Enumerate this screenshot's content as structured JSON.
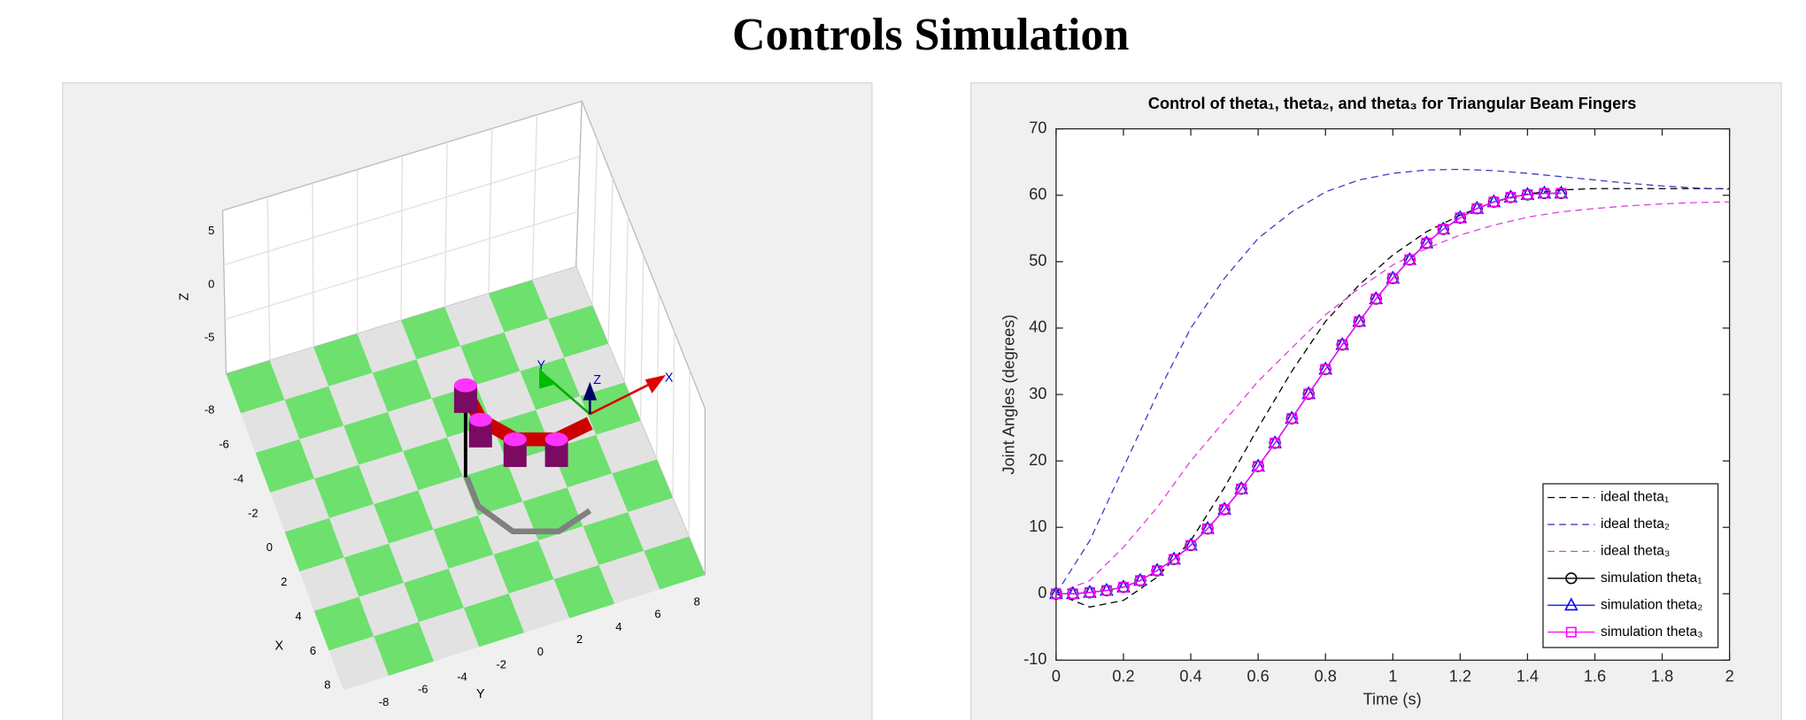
{
  "title": "Controls Simulation",
  "scene": {
    "zlabel": "Z",
    "xlabel": "X",
    "ylabel": "Y",
    "zticks": [
      5,
      0,
      -5
    ],
    "xticks": [
      -8,
      -6,
      -4,
      -2,
      0,
      2,
      4,
      6,
      8
    ],
    "yticks": [
      -8,
      -6,
      -4,
      -2,
      0,
      2,
      4,
      6,
      8
    ],
    "frame_labels": [
      "X",
      "Y",
      "Z"
    ]
  },
  "chart_data": {
    "type": "line",
    "title": "Control of theta₁, theta₂, and theta₃ for Triangular Beam Fingers",
    "x_label": "Time (s)",
    "y_label": "Joint Angles (degrees)",
    "xlim": [
      0,
      2
    ],
    "ylim": [
      -10,
      70
    ],
    "xticks": [
      0,
      0.2,
      0.4,
      0.6,
      0.8,
      1,
      1.2,
      1.4,
      1.6,
      1.8,
      2
    ],
    "yticks": [
      -10,
      0,
      10,
      20,
      30,
      40,
      50,
      60,
      70
    ],
    "grid": false,
    "legend_position": "southeast",
    "series": [
      {
        "name": "ideal theta₁",
        "color": "#000000",
        "line_style": "dashed",
        "marker": "none",
        "x": [
          0,
          0.1,
          0.2,
          0.3,
          0.4,
          0.5,
          0.6,
          0.7,
          0.8,
          0.9,
          1,
          1.1,
          1.2,
          1.3,
          1.4,
          1.5,
          1.6,
          1.7,
          1.8,
          1.9,
          2
        ],
        "values": [
          0,
          -2,
          -1,
          2.5,
          8,
          16,
          25,
          33.5,
          41,
          46.5,
          51,
          54.5,
          57,
          59,
          60.2,
          60.8,
          61,
          61,
          61,
          61,
          61
        ]
      },
      {
        "name": "ideal theta₂",
        "color": "#3c3cc8",
        "line_style": "dashed",
        "marker": "none",
        "x": [
          0,
          0.1,
          0.2,
          0.3,
          0.4,
          0.5,
          0.6,
          0.7,
          0.8,
          0.9,
          1,
          1.1,
          1.2,
          1.3,
          1.4,
          1.5,
          1.6,
          1.7,
          1.8,
          1.9,
          2
        ],
        "values": [
          0,
          8,
          19,
          30,
          40,
          47.5,
          53.5,
          57.5,
          60.5,
          62.3,
          63.3,
          63.8,
          63.9,
          63.7,
          63.3,
          62.8,
          62.3,
          61.8,
          61.4,
          61.1,
          60.9
        ]
      },
      {
        "name": "ideal theta₃",
        "color": "#e040e0",
        "line_style": "dashed",
        "marker": "none",
        "x": [
          0,
          0.1,
          0.2,
          0.3,
          0.4,
          0.5,
          0.6,
          0.7,
          0.8,
          0.9,
          1,
          1.1,
          1.2,
          1.3,
          1.4,
          1.5,
          1.6,
          1.7,
          1.8,
          1.9,
          2
        ],
        "values": [
          0,
          2,
          7,
          13,
          20,
          26,
          32,
          37,
          42,
          46,
          49.5,
          52,
          54,
          55.5,
          56.7,
          57.5,
          58,
          58.4,
          58.7,
          58.9,
          59
        ]
      },
      {
        "name": "simulation theta₁",
        "color": "#000000",
        "line_style": "solid",
        "marker": "circle",
        "x": [
          0,
          0.05,
          0.1,
          0.15,
          0.2,
          0.25,
          0.3,
          0.35,
          0.4,
          0.45,
          0.5,
          0.55,
          0.6,
          0.65,
          0.7,
          0.75,
          0.8,
          0.85,
          0.9,
          0.95,
          1,
          1.05,
          1.1,
          1.15,
          1.2,
          1.25,
          1.3,
          1.35,
          1.4,
          1.45,
          1.5
        ],
        "values": [
          0,
          0,
          0.2,
          0.5,
          1,
          2,
          3.5,
          5.2,
          7.3,
          9.8,
          12.7,
          15.8,
          19.2,
          22.7,
          26.4,
          30.1,
          33.8,
          37.5,
          41,
          44.4,
          47.5,
          50.3,
          52.8,
          54.9,
          56.6,
          58,
          59,
          59.7,
          60.1,
          60.3,
          60.3
        ]
      },
      {
        "name": "simulation theta₂",
        "color": "#0000ff",
        "line_style": "solid",
        "marker": "triangle",
        "x": [
          0,
          0.05,
          0.1,
          0.15,
          0.2,
          0.25,
          0.3,
          0.35,
          0.4,
          0.45,
          0.5,
          0.55,
          0.6,
          0.65,
          0.7,
          0.75,
          0.8,
          0.85,
          0.9,
          0.95,
          1,
          1.05,
          1.1,
          1.15,
          1.2,
          1.25,
          1.3,
          1.35,
          1.4,
          1.45,
          1.5
        ],
        "values": [
          0,
          0,
          0.2,
          0.5,
          1,
          2,
          3.5,
          5.2,
          7.3,
          9.8,
          12.7,
          15.8,
          19.2,
          22.7,
          26.4,
          30.1,
          33.8,
          37.5,
          41,
          44.4,
          47.5,
          50.3,
          52.8,
          54.9,
          56.6,
          58,
          59,
          59.7,
          60.1,
          60.3,
          60.3
        ]
      },
      {
        "name": "simulation theta₃",
        "color": "#ff00ff",
        "line_style": "solid",
        "marker": "square",
        "x": [
          0,
          0.05,
          0.1,
          0.15,
          0.2,
          0.25,
          0.3,
          0.35,
          0.4,
          0.45,
          0.5,
          0.55,
          0.6,
          0.65,
          0.7,
          0.75,
          0.8,
          0.85,
          0.9,
          0.95,
          1,
          1.05,
          1.1,
          1.15,
          1.2,
          1.25,
          1.3,
          1.35,
          1.4,
          1.45,
          1.5
        ],
        "values": [
          0,
          0,
          0.2,
          0.5,
          1,
          2,
          3.5,
          5.2,
          7.3,
          9.8,
          12.7,
          15.8,
          19.2,
          22.7,
          26.4,
          30.1,
          33.8,
          37.5,
          41,
          44.4,
          47.5,
          50.3,
          52.8,
          54.9,
          56.6,
          58,
          59,
          59.7,
          60.1,
          60.3,
          60.3
        ]
      }
    ]
  }
}
